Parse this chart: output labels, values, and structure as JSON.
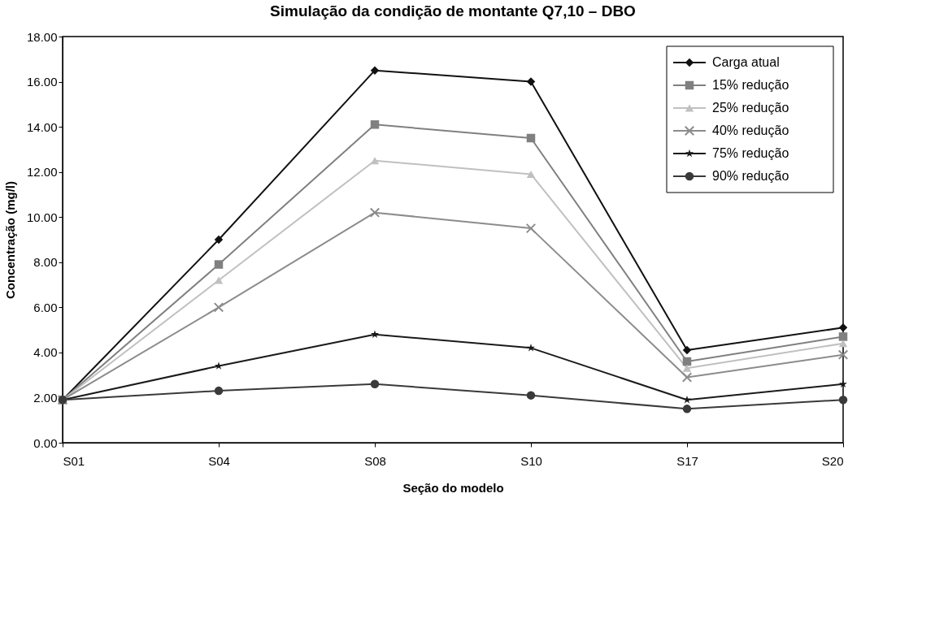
{
  "chart_data": {
    "type": "line",
    "title": "Simulação da condição de montante Q7,10 – DBO",
    "xlabel": "Seção do modelo",
    "ylabel": "Concentração (mg/l)",
    "categories": [
      "S01",
      "S04",
      "S08",
      "S10",
      "S17",
      "S20"
    ],
    "series": [
      {
        "name": "Carga atual",
        "color": "#111111",
        "marker": "diamond",
        "values": [
          1.9,
          9.0,
          16.5,
          16.0,
          4.1,
          5.1
        ]
      },
      {
        "name": "15% redução",
        "color": "#808080",
        "marker": "square",
        "values": [
          1.9,
          7.9,
          14.1,
          13.5,
          3.6,
          4.7
        ]
      },
      {
        "name": "25% redução",
        "color": "#c0c0c0",
        "marker": "triangle",
        "values": [
          1.9,
          7.2,
          12.5,
          11.9,
          3.3,
          4.4
        ]
      },
      {
        "name": "40% redução",
        "color": "#8c8c8c",
        "marker": "cross",
        "values": [
          1.9,
          6.0,
          10.2,
          9.5,
          2.9,
          3.9
        ]
      },
      {
        "name": "75% redução",
        "color": "#1a1a1a",
        "marker": "star",
        "values": [
          1.9,
          3.4,
          4.8,
          4.2,
          1.9,
          2.6
        ]
      },
      {
        "name": "90% redução",
        "color": "#3a3a3a",
        "marker": "circle",
        "values": [
          1.9,
          2.3,
          2.6,
          2.1,
          1.5,
          1.9
        ]
      }
    ],
    "ylim": [
      0,
      18
    ],
    "yticks": [
      {
        "value": 0,
        "label": "0.00"
      },
      {
        "value": 2,
        "label": "2.00"
      },
      {
        "value": 4,
        "label": "4.00"
      },
      {
        "value": 6,
        "label": "6.00"
      },
      {
        "value": 8,
        "label": "8.00"
      },
      {
        "value": 10,
        "label": "10.00"
      },
      {
        "value": 12,
        "label": "12.00"
      },
      {
        "value": 14,
        "label": "14.00"
      },
      {
        "value": 16,
        "label": "16.00"
      },
      {
        "value": 18,
        "label": "18.00"
      }
    ],
    "grid": false,
    "legend": "top right",
    "line_style": "solid"
  }
}
